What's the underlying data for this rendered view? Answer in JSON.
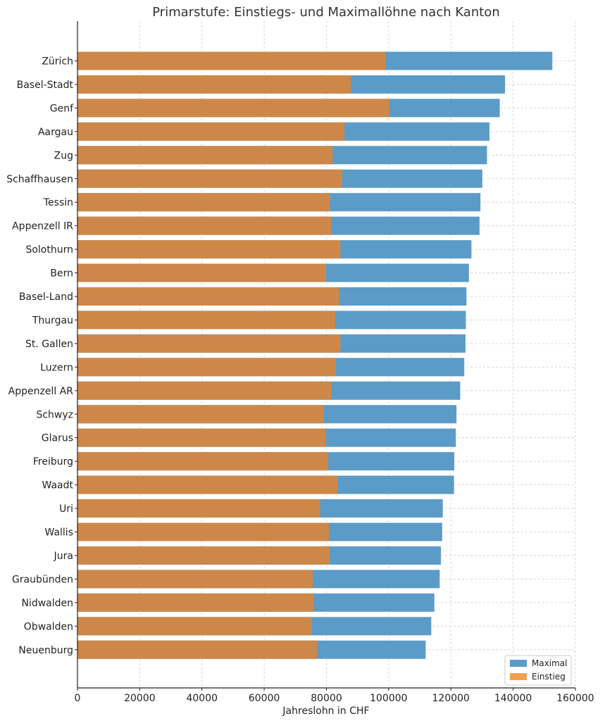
{
  "colors": {
    "maximal": "#5b9bc8",
    "einstieg": "#f5a04f",
    "overlap": "#cd8849",
    "axis": "#222222",
    "grid": "#cccccc"
  },
  "chart_data": {
    "type": "bar",
    "orientation": "horizontal",
    "title": "Primarstufe: Einstiegs- und Maximallöhne nach Kanton",
    "xlabel": "Jahreslohn in CHF",
    "ylabel": "",
    "xlim": [
      0,
      160000
    ],
    "xticks": [
      0,
      20000,
      40000,
      60000,
      80000,
      100000,
      120000,
      140000,
      160000
    ],
    "xtick_labels": [
      "0",
      "20000",
      "40000",
      "60000",
      "80000",
      "100000",
      "120000",
      "140000",
      "160000"
    ],
    "grid": true,
    "legend_position": "bottom-right",
    "categories": [
      "Zürich",
      "Basel-Stadt",
      "Genf",
      "Aargau",
      "Zug",
      "Schaffhausen",
      "Tessin",
      "Appenzell IR",
      "Solothurn",
      "Bern",
      "Basel-Land",
      "Thurgau",
      "St. Gallen",
      "Luzern",
      "Appenzell AR",
      "Schwyz",
      "Glarus",
      "Freiburg",
      "Waadt",
      "Uri",
      "Wallis",
      "Jura",
      "Graubünden",
      "Nidwalden",
      "Obwalden",
      "Neuenburg"
    ],
    "series": [
      {
        "name": "Maximal",
        "values": [
          152600,
          137400,
          135700,
          132400,
          131600,
          130100,
          129500,
          129200,
          126600,
          125800,
          125000,
          124800,
          124700,
          124300,
          123000,
          121800,
          121600,
          121100,
          121000,
          117400,
          117200,
          116800,
          116400,
          114700,
          113700,
          111900
        ]
      },
      {
        "name": "Einstieg",
        "values": [
          99000,
          87900,
          100200,
          85800,
          82000,
          85100,
          81100,
          81500,
          84500,
          79900,
          84100,
          82900,
          84500,
          83000,
          81600,
          79200,
          79800,
          80600,
          83500,
          78000,
          80800,
          81000,
          75600,
          75900,
          75300,
          77000
        ]
      }
    ]
  }
}
